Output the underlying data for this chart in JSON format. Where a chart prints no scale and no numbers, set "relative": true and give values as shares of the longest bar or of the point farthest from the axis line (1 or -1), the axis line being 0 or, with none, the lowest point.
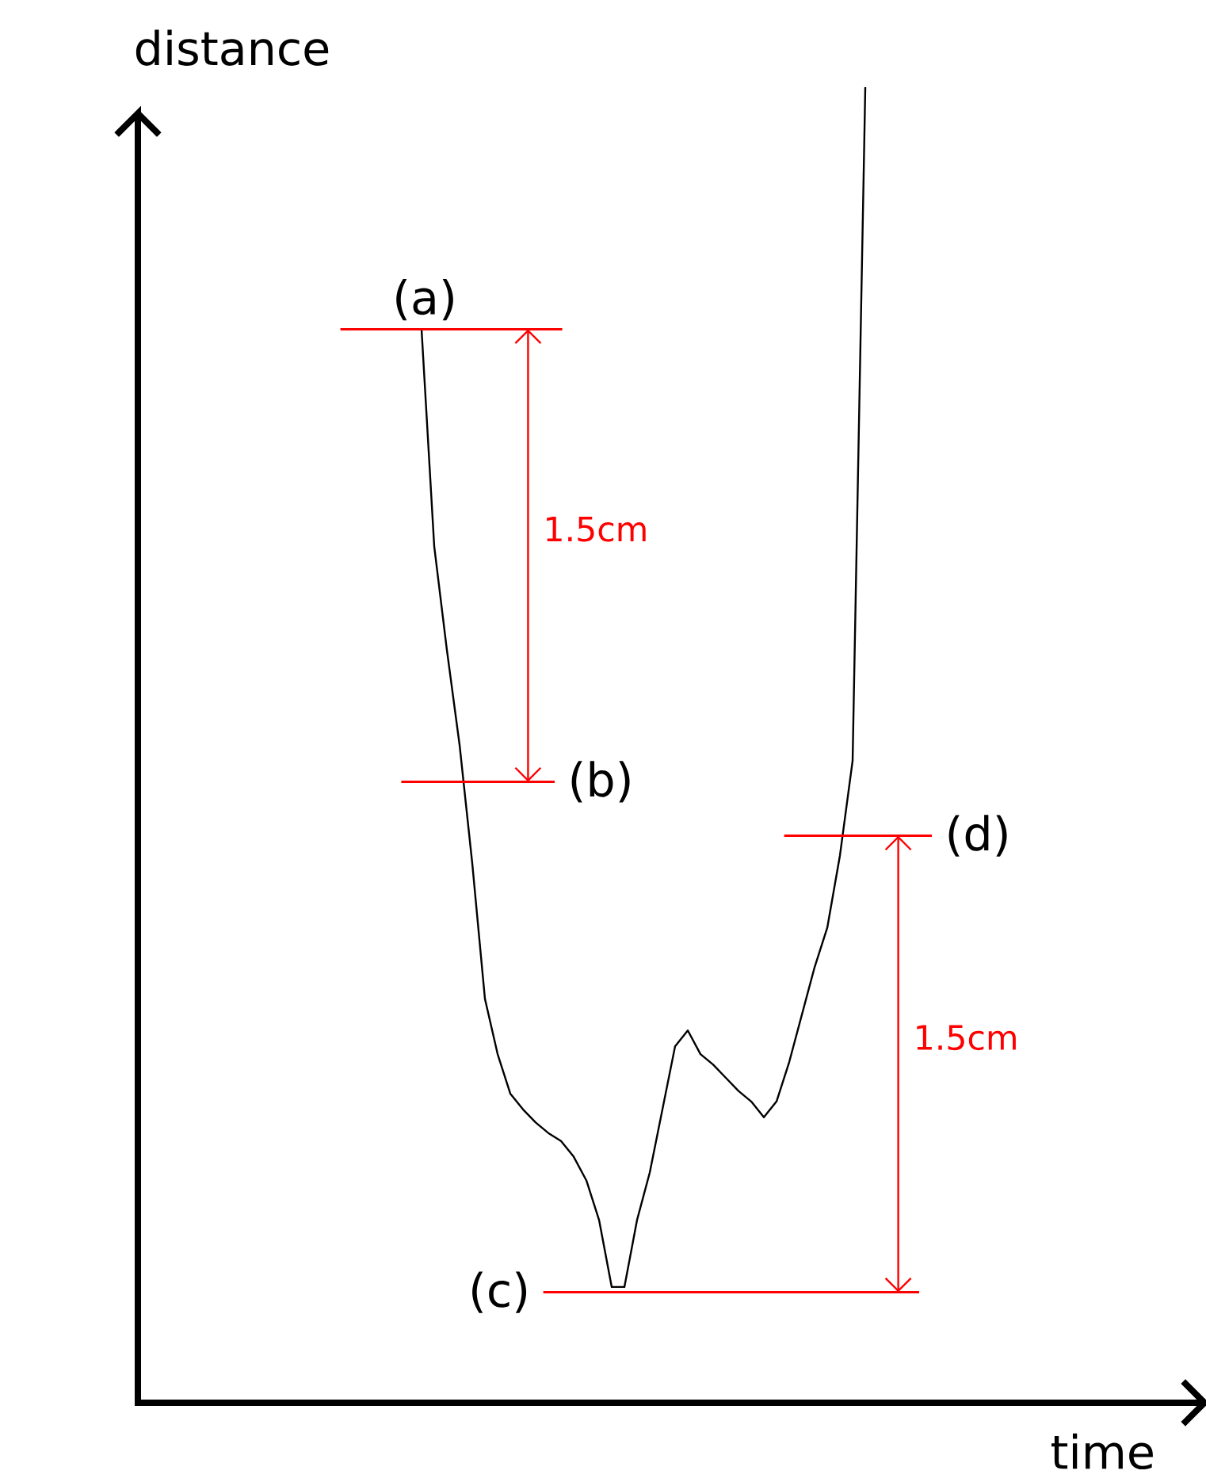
{
  "chart_data": {
    "type": "line",
    "xlabel": "time",
    "ylabel": "distance",
    "relative": true,
    "categories": [
      null,
      null,
      null,
      null,
      null,
      null,
      null,
      null,
      null,
      null,
      null,
      null,
      null,
      null,
      null,
      null,
      null,
      null,
      null,
      null,
      null,
      null,
      null,
      null,
      null,
      null,
      null,
      null,
      null,
      null,
      null,
      null,
      null,
      null,
      null,
      null,
      null,
      null,
      null,
      null,
      null,
      null,
      null,
      null,
      null,
      null,
      null,
      null,
      null,
      null,
      null,
      null,
      null,
      null,
      null,
      null,
      null,
      null,
      null,
      null,
      null,
      null,
      null,
      null,
      null,
      null,
      null,
      null,
      null,
      null,
      null,
      null,
      null,
      null,
      null,
      null,
      null,
      null,
      null,
      null,
      null,
      null,
      null,
      null
    ],
    "series": [
      {
        "color": "#000000",
        "values": [
          null,
          null,
          null,
          null,
          null,
          null,
          null,
          null,
          null,
          null,
          null,
          null,
          null,
          null,
          null,
          null,
          null,
          null,
          null,
          null,
          null,
          null,
          0.816,
          0.651,
          0.572,
          0.5,
          0.41,
          0.307,
          0.265,
          0.235,
          0.223,
          0.213,
          0.205,
          0.199,
          0.187,
          0.169,
          0.139,
          0.088,
          0.088,
          0.139,
          0.175,
          0.223,
          0.271,
          0.283,
          0.265,
          0.257,
          0.247,
          0.237,
          0.229,
          0.217,
          0.229,
          0.259,
          0.295,
          0.331,
          0.361,
          0.416,
          0.488,
          1,
          null,
          null,
          null,
          null,
          null,
          null,
          null,
          null,
          null,
          null,
          null,
          null,
          null,
          null,
          null,
          null,
          null,
          null,
          null,
          null,
          null,
          null,
          null,
          null,
          null,
          null
        ]
      }
    ],
    "ref_lines": [
      {
        "axis": "y",
        "value": 0.816,
        "label": "(a)",
        "color": "#ff0000"
      },
      {
        "axis": "y",
        "value": 0.472,
        "label": "(b)",
        "color": "#ff0000"
      },
      {
        "axis": "y",
        "value": 0.084,
        "label": "(c)",
        "color": "#ff0000"
      },
      {
        "axis": "y",
        "value": 0.431,
        "label": "(d)",
        "color": "#ff0000"
      }
    ],
    "annotations": [
      "1.5cm",
      "1.5cm"
    ]
  }
}
